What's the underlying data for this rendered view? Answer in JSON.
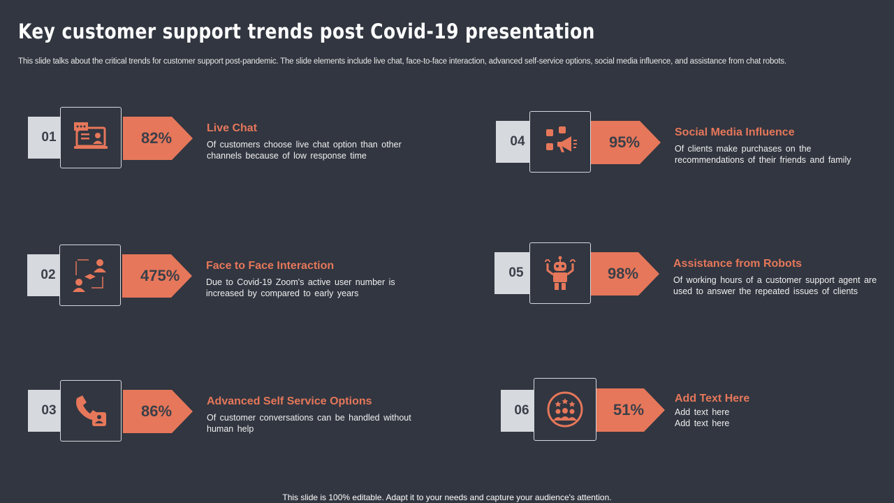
{
  "slide": {
    "title": "Key customer support trends post Covid-19 presentation",
    "subtitle": "This slide talks about the critical trends for customer support post-pandemic. The slide elements include live chat, face-to-face interaction, advanced self-service options, social media influence, and assistance from chat robots.",
    "footer": "This slide is 100% editable. Adapt it to your needs and capture your audience's attention."
  },
  "colors": {
    "background": "#313640",
    "accent": "#e6775a",
    "badge": "#d6d9de"
  },
  "items": [
    {
      "number": "01",
      "percent": "82%",
      "heading": "Live Chat",
      "description": "Of customers choose live chat option than other channels because of low response time",
      "icon": "live-chat-icon"
    },
    {
      "number": "02",
      "percent": "475%",
      "heading": "Face to Face Interaction",
      "description": "Due to Covid-19 Zoom's active user number is increased by compared to early years",
      "icon": "face-to-face-icon"
    },
    {
      "number": "03",
      "percent": "86%",
      "heading": "Advanced Self Service Options",
      "description": "Of customer conversations can be handled without human help",
      "icon": "phone-support-icon"
    },
    {
      "number": "04",
      "percent": "95%",
      "heading": "Social Media Influence",
      "description": "Of clients make purchases on the recommendations of their friends and family",
      "icon": "social-media-icon"
    },
    {
      "number": "05",
      "percent": "98%",
      "heading": "Assistance from Robots",
      "description": "Of working hours of a customer support agent are used to answer the repeated issues of clients",
      "icon": "robot-icon"
    },
    {
      "number": "06",
      "percent": "51%",
      "heading": "Add Text Here",
      "description": "Add text here Add text here",
      "icon": "team-rating-icon"
    }
  ]
}
